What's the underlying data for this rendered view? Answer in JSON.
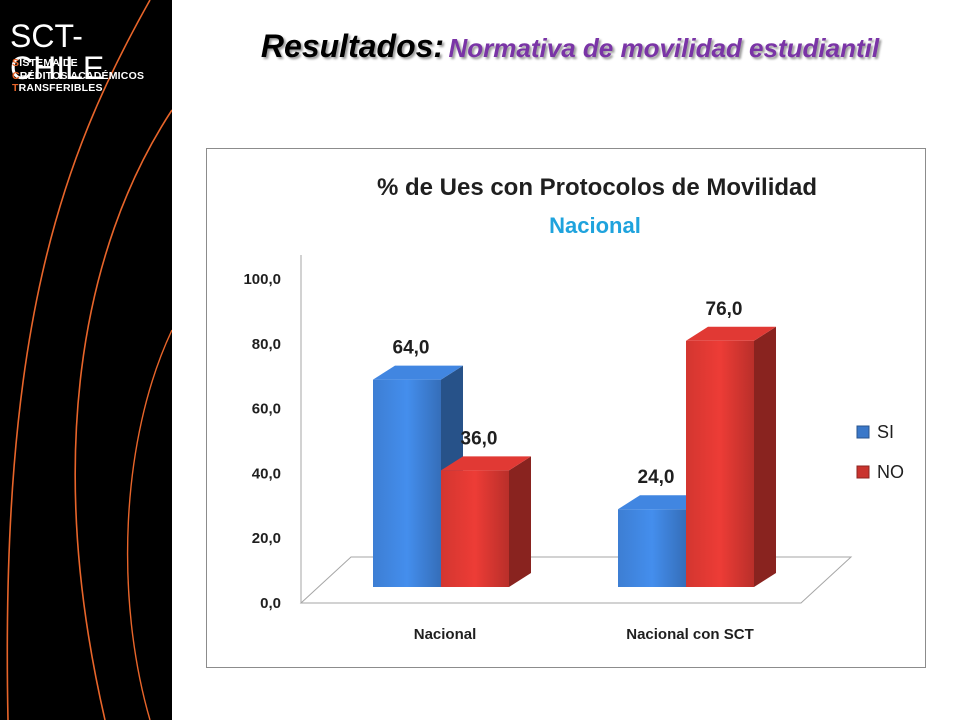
{
  "logo": {
    "main_pre": "SCT",
    "main_dash": "-",
    "main_post": "CHILE",
    "sub_lines": [
      {
        "cap": "S",
        "rest": "ISTEMA DE"
      },
      {
        "cap": "C",
        "rest": "RÉDITOS ACADÉMICOS"
      },
      {
        "cap": "T",
        "rest": "RANSFERIBLES"
      }
    ]
  },
  "slide_title": {
    "lead": "Resultados:",
    "rest": "Normativa de movilidad estudiantil"
  },
  "colors": {
    "sidebar_bg": "#000000",
    "sidebar_lines": "#e8652a",
    "title_purple": "#7a34a6",
    "subtitle_blue": "#1fa3dd",
    "series_si": "#3a78c9",
    "series_no": "#c9332e"
  },
  "chart_data": {
    "type": "bar",
    "title": "% de Ues con Protocolos de Movilidad",
    "subtitle": "Nacional",
    "categories": [
      "Nacional",
      "Nacional con SCT"
    ],
    "series": [
      {
        "name": "SI",
        "values": [
          64.0,
          24.0
        ],
        "labels": [
          "64,0",
          "24,0"
        ],
        "color": "#3a78c9"
      },
      {
        "name": "NO",
        "values": [
          36.0,
          76.0
        ],
        "labels": [
          "36,0",
          "76,0"
        ],
        "color": "#c9332e"
      }
    ],
    "ylim": [
      0,
      100
    ],
    "yticks": [
      0,
      20,
      40,
      60,
      80,
      100
    ],
    "ytick_labels": [
      "0,0",
      "20,0",
      "40,0",
      "60,0",
      "80,0",
      "100,0"
    ],
    "xlabel": "",
    "ylabel": "",
    "legend_position": "right",
    "grid": false,
    "style": "3d"
  }
}
